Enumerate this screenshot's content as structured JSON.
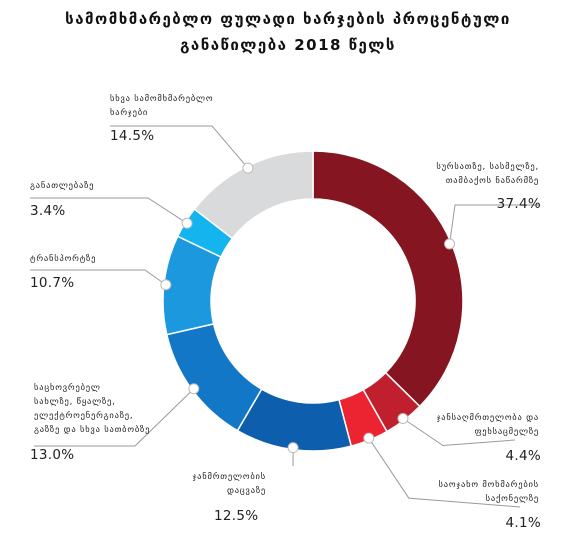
{
  "title_line1": "სამომხმარებლო ფულადი ხარჯების პროცენტული",
  "title_line2": "განაწილება 2018 წელს",
  "chart_data": {
    "type": "pie",
    "donut": true,
    "slices": [
      {
        "label": "სურსათზე, სასმელზე, თამბაქოს ნაწარმზე",
        "lines": [
          "სურსათზე, სასმელზე,",
          "თამბაქოს ნაწარმზე"
        ],
        "value": 37.4,
        "pct_text": "37.4%",
        "color": "#851621"
      },
      {
        "label": "ჯანსაღმრთელობა და ფეხსაცმელზე",
        "lines": [
          "ჯანსაღმრთელობა და",
          "ფეხსაცმელზე"
        ],
        "value": 4.4,
        "pct_text": "4.4%",
        "color": "#c0202e"
      },
      {
        "label": "საოჯახო მოხმარების საქონელზე",
        "lines": [
          "საოჯახო მოხმარების",
          "საქონელზე"
        ],
        "value": 4.1,
        "pct_text": "4.1%",
        "color": "#ec2432"
      },
      {
        "label": "ჯანმრთელობის დაცვაზე",
        "lines": [
          "ჯანმრთელობის",
          "დაცვაზე"
        ],
        "value": 12.5,
        "pct_text": "12.5%",
        "color": "#0d5fae"
      },
      {
        "label": "საცხოვრებელ სახლზე, წყალზე, ელექტროენერგიაზე, გაზზე და სხვა სათბობზე",
        "lines": [
          "საცხოვრებელ",
          "სახლზე, წყალზე,",
          "ელექტროენერგიაზე,",
          "გაზზე და სხვა სათბობზე"
        ],
        "value": 13.0,
        "pct_text": "13.0%",
        "color": "#1177c6"
      },
      {
        "label": "ტრანსპორტზე",
        "lines": [
          "ტრანსპორტზე"
        ],
        "value": 10.7,
        "pct_text": "10.7%",
        "color": "#1b98de"
      },
      {
        "label": "განათლებაზე",
        "lines": [
          "განათლებაზე"
        ],
        "value": 3.4,
        "pct_text": "3.4%",
        "color": "#14b4ef"
      },
      {
        "label": "სხვა სამომხმარებლო ხარჯები",
        "lines": [
          "სხვა სამომხმარებლო",
          "ხარჯები"
        ],
        "value": 14.5,
        "pct_text": "14.5%",
        "color": "#d9dadb"
      }
    ]
  }
}
